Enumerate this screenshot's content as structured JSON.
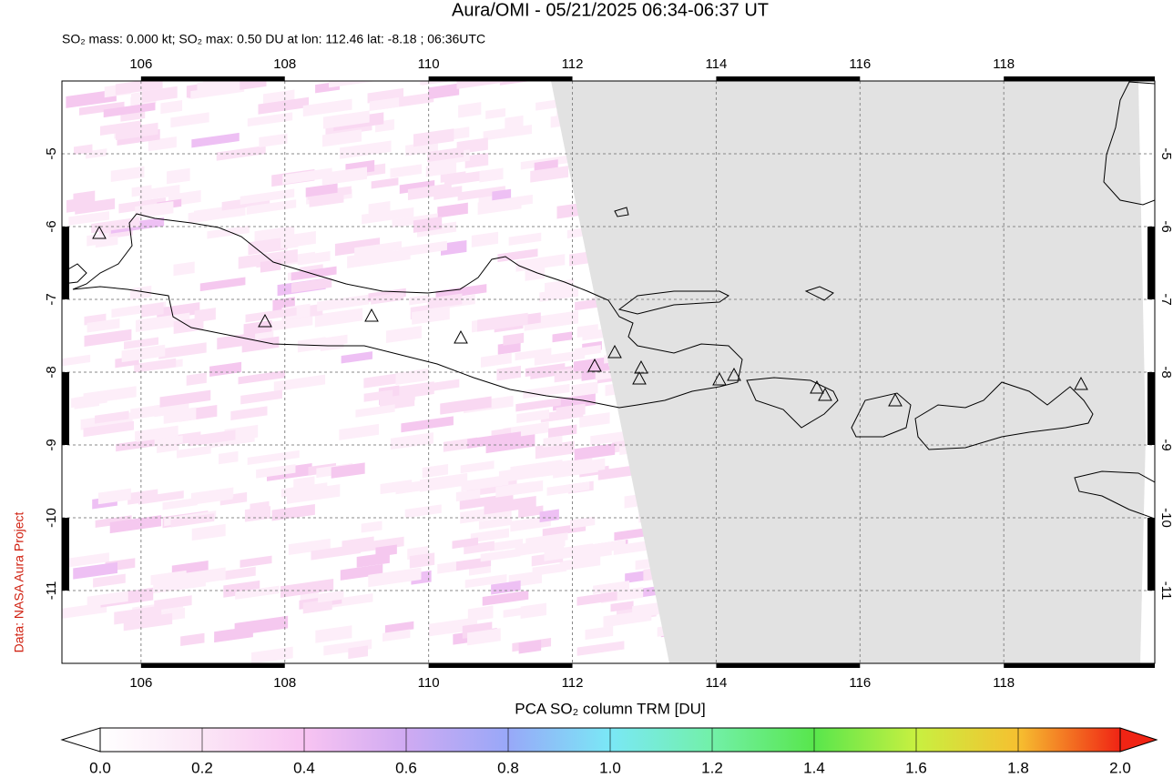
{
  "title": "Aura/OMI - 05/21/2025 06:34-06:37 UT",
  "subtitle": "SO₂ mass: 0.000 kt; SO₂ max: 0.50 DU at lon: 112.46 lat: -8.18 ; 06:36UTC",
  "credit": "Data: NASA Aura Project",
  "map": {
    "xlim": [
      104.9,
      120.1
    ],
    "ylim": [
      -12,
      -4
    ],
    "xticks": [
      106,
      108,
      110,
      112,
      114,
      116,
      118
    ],
    "yticks": [
      -5,
      -6,
      -7,
      -8,
      -9,
      -10,
      -11
    ]
  },
  "colorbar": {
    "label": "PCA SO₂ column TRM [DU]",
    "lim": [
      0,
      2
    ],
    "ticks": [
      {
        "value": 0,
        "label": "0.0"
      },
      {
        "value": 0.2,
        "label": "0.2"
      },
      {
        "value": 0.4,
        "label": "0.4"
      },
      {
        "value": 0.6,
        "label": "0.6"
      },
      {
        "value": 0.8,
        "label": "0.8"
      },
      {
        "value": 1,
        "label": "1.0"
      },
      {
        "value": 1.2,
        "label": "1.2"
      },
      {
        "value": 1.4,
        "label": "1.4"
      },
      {
        "value": 1.6,
        "label": "1.6"
      },
      {
        "value": 1.8,
        "label": "1.8"
      },
      {
        "value": 2,
        "label": "2.0"
      }
    ]
  }
}
